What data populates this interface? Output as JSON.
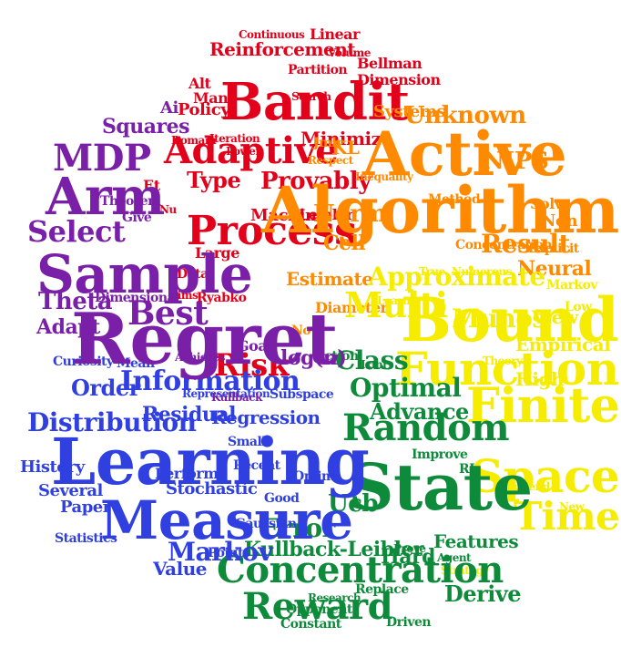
{
  "palette": {
    "red": "#e2001a",
    "orange": "#ff8a00",
    "yellow": "#f5ec00",
    "green": "#0d8a3a",
    "blue": "#2f3fe0",
    "purple": "#7a1fa8"
  },
  "words": [
    {
      "text": "Bandit",
      "color": "red",
      "size": "xl"
    },
    {
      "text": "Adaptive",
      "color": "red",
      "size": "lg"
    },
    {
      "text": "Reinforcement",
      "color": "red",
      "size": "md"
    },
    {
      "text": "Risk",
      "color": "red",
      "size": "md"
    },
    {
      "text": "Process",
      "color": "red",
      "size": "lg"
    },
    {
      "text": "Type",
      "color": "red",
      "size": "md"
    },
    {
      "text": "Provably",
      "color": "red",
      "size": "md"
    },
    {
      "text": "Minimize",
      "color": "red",
      "size": "sm"
    },
    {
      "text": "Policy",
      "color": "red",
      "size": "sm"
    },
    {
      "text": "Alt",
      "color": "red",
      "size": "sm"
    },
    {
      "text": "Many",
      "color": "red",
      "size": "sm"
    },
    {
      "text": "Dimension",
      "color": "red",
      "size": "sm"
    },
    {
      "text": "Bellman",
      "color": "red",
      "size": "sm"
    },
    {
      "text": "Partition",
      "color": "red",
      "size": "sm"
    },
    {
      "text": "Linear",
      "color": "red",
      "size": "sm"
    },
    {
      "text": "Continuous",
      "color": "red",
      "size": "xs"
    },
    {
      "text": "Volume",
      "color": "red",
      "size": "xs"
    },
    {
      "text": "Machine",
      "color": "red",
      "size": "sm"
    },
    {
      "text": "Leibler",
      "color": "red",
      "size": "sm"
    },
    {
      "text": "Large",
      "color": "red",
      "size": "sm"
    },
    {
      "text": "Data",
      "color": "red",
      "size": "xs"
    },
    {
      "text": "Iteration",
      "color": "red",
      "size": "xs"
    },
    {
      "text": "Search",
      "color": "red",
      "size": "xs"
    },
    {
      "text": "Ryabko",
      "color": "red",
      "size": "xs"
    },
    {
      "text": "Aims",
      "color": "red",
      "size": "xs"
    },
    {
      "text": "Et",
      "color": "red",
      "size": "sm"
    },
    {
      "text": "Nu",
      "color": "red",
      "size": "xs"
    },
    {
      "text": "Lower",
      "color": "red",
      "size": "xs"
    },
    {
      "text": "Domain",
      "color": "red",
      "size": "xs"
    },
    {
      "text": "Active",
      "color": "orange",
      "size": "xl"
    },
    {
      "text": "Algorithm",
      "color": "orange",
      "size": "xl"
    },
    {
      "text": "NIPS",
      "color": "orange",
      "size": "md"
    },
    {
      "text": "Unknown",
      "color": "orange",
      "size": "md"
    },
    {
      "text": "Result",
      "color": "orange",
      "size": "md"
    },
    {
      "text": "Norm",
      "color": "orange",
      "size": "md"
    },
    {
      "text": "Cell",
      "color": "orange",
      "size": "md"
    },
    {
      "text": "Estimate",
      "color": "orange",
      "size": "sm"
    },
    {
      "text": "KL",
      "color": "orange",
      "size": "md"
    },
    {
      "text": "Neural",
      "color": "orange",
      "size": "sm"
    },
    {
      "text": "Systems",
      "color": "orange",
      "size": "sm"
    },
    {
      "text": "Concentration",
      "color": "orange",
      "size": "xs"
    },
    {
      "text": "Inequality",
      "color": "orange",
      "size": "xs"
    },
    {
      "text": "Method",
      "color": "orange",
      "size": "xs"
    },
    {
      "text": "Solve",
      "color": "orange",
      "size": "xs"
    },
    {
      "text": "Non",
      "color": "orange",
      "size": "sm"
    },
    {
      "text": "Jmlr",
      "color": "orange",
      "size": "xs"
    },
    {
      "text": "Respect",
      "color": "orange",
      "size": "xs"
    },
    {
      "text": "Explicit",
      "color": "orange",
      "size": "xs"
    },
    {
      "text": "Diameter",
      "color": "orange",
      "size": "xs"
    },
    {
      "text": "Now",
      "color": "orange",
      "size": "xs"
    },
    {
      "text": "Bound",
      "color": "yellow",
      "size": "xl"
    },
    {
      "text": "Function",
      "color": "yellow",
      "size": "lg"
    },
    {
      "text": "Finite",
      "color": "yellow",
      "size": "lg"
    },
    {
      "text": "Space",
      "color": "yellow",
      "size": "lg"
    },
    {
      "text": "Time",
      "color": "yellow",
      "size": "lg"
    },
    {
      "text": "Multi",
      "color": "yellow",
      "size": "md"
    },
    {
      "text": "Approximate",
      "color": "yellow",
      "size": "md"
    },
    {
      "text": "Munos",
      "color": "yellow",
      "size": "md"
    },
    {
      "text": "View",
      "color": "yellow",
      "size": "sm"
    },
    {
      "text": "Empirical",
      "color": "yellow",
      "size": "sm"
    },
    {
      "text": "High",
      "color": "yellow",
      "size": "sm"
    },
    {
      "text": "Markov",
      "color": "yellow",
      "size": "xs"
    },
    {
      "text": "Low",
      "color": "yellow",
      "size": "xs"
    },
    {
      "text": "Theory",
      "color": "yellow",
      "size": "xs"
    },
    {
      "text": "Extend",
      "color": "yellow",
      "size": "xs"
    },
    {
      "text": "New",
      "color": "yellow",
      "size": "xs"
    },
    {
      "text": "Strategy",
      "color": "yellow",
      "size": "xs"
    },
    {
      "text": "True",
      "color": "yellow",
      "size": "xs"
    },
    {
      "text": "Numerous",
      "color": "yellow",
      "size": "xs"
    },
    {
      "text": "Learner",
      "color": "yellow",
      "size": "xs"
    },
    {
      "text": "State",
      "color": "green",
      "size": "xl"
    },
    {
      "text": "Concentration",
      "color": "green",
      "size": "lg"
    },
    {
      "text": "Reward",
      "color": "green",
      "size": "lg"
    },
    {
      "text": "Random",
      "color": "green",
      "size": "lg"
    },
    {
      "text": "Class",
      "color": "green",
      "size": "md"
    },
    {
      "text": "Optimal",
      "color": "green",
      "size": "md"
    },
    {
      "text": "Advance",
      "color": "green",
      "size": "md"
    },
    {
      "text": "Error",
      "color": "green",
      "size": "md"
    },
    {
      "text": "Ucb",
      "color": "green",
      "size": "md"
    },
    {
      "text": "Kullback-Leibler",
      "color": "green",
      "size": "md"
    },
    {
      "text": "Derive",
      "color": "green",
      "size": "md"
    },
    {
      "text": "Features",
      "color": "green",
      "size": "sm"
    },
    {
      "text": "Prove",
      "color": "green",
      "size": "xs"
    },
    {
      "text": "Hard",
      "color": "green",
      "size": "sm"
    },
    {
      "text": "Improve",
      "color": "green",
      "size": "xs"
    },
    {
      "text": "Opponent",
      "color": "green",
      "size": "xs"
    },
    {
      "text": "Replace",
      "color": "green",
      "size": "xs"
    },
    {
      "text": "Driven",
      "color": "green",
      "size": "xs"
    },
    {
      "text": "Research",
      "color": "green",
      "size": "xs"
    },
    {
      "text": "Constant",
      "color": "green",
      "size": "xs"
    },
    {
      "text": "Action",
      "color": "green",
      "size": "xs"
    },
    {
      "text": "Icml",
      "color": "green",
      "size": "xs"
    },
    {
      "text": "RL",
      "color": "green",
      "size": "xs"
    },
    {
      "text": "Agent",
      "color": "green",
      "size": "xs"
    },
    {
      "text": "Learning",
      "color": "blue",
      "size": "xl"
    },
    {
      "text": "Measure",
      "color": "blue",
      "size": "xl"
    },
    {
      "text": "Distribution",
      "color": "blue",
      "size": "md"
    },
    {
      "text": "Information",
      "color": "blue",
      "size": "md"
    },
    {
      "text": "Order",
      "color": "blue",
      "size": "md"
    },
    {
      "text": "Markov",
      "color": "blue",
      "size": "md"
    },
    {
      "text": "Residual",
      "color": "blue",
      "size": "sm"
    },
    {
      "text": "Regression",
      "color": "blue",
      "size": "sm"
    },
    {
      "text": "Stochastic",
      "color": "blue",
      "size": "sm"
    },
    {
      "text": "Performs",
      "color": "blue",
      "size": "sm"
    },
    {
      "text": "History",
      "color": "blue",
      "size": "sm"
    },
    {
      "text": "Several",
      "color": "blue",
      "size": "sm"
    },
    {
      "text": "Paper",
      "color": "blue",
      "size": "sm"
    },
    {
      "text": "Statistics",
      "color": "blue",
      "size": "xs"
    },
    {
      "text": "Value",
      "color": "blue",
      "size": "sm"
    },
    {
      "text": "Online",
      "color": "blue",
      "size": "xs"
    },
    {
      "text": "Good",
      "color": "blue",
      "size": "xs"
    },
    {
      "text": "Gaussian",
      "color": "blue",
      "size": "xs"
    },
    {
      "text": "Subspace",
      "color": "blue",
      "size": "xs"
    },
    {
      "text": "Representation",
      "color": "blue",
      "size": "xs"
    },
    {
      "text": "Small",
      "color": "blue",
      "size": "xs"
    },
    {
      "text": "Recent",
      "color": "blue",
      "size": "xs"
    },
    {
      "text": "Points",
      "color": "blue",
      "size": "xs"
    },
    {
      "text": "Curiosity",
      "color": "blue",
      "size": "xs"
    },
    {
      "text": "Mean",
      "color": "blue",
      "size": "xs"
    },
    {
      "text": "Regret",
      "color": "purple",
      "size": "xl"
    },
    {
      "text": "Sample",
      "color": "purple",
      "size": "xl"
    },
    {
      "text": "Arm",
      "color": "purple",
      "size": "lg"
    },
    {
      "text": "MDP",
      "color": "purple",
      "size": "lg"
    },
    {
      "text": "Select",
      "color": "purple",
      "size": "md"
    },
    {
      "text": "Best",
      "color": "purple",
      "size": "md"
    },
    {
      "text": "Theta",
      "color": "purple",
      "size": "sm"
    },
    {
      "text": "Adapt",
      "color": "purple",
      "size": "sm"
    },
    {
      "text": "Squares",
      "color": "purple",
      "size": "sm"
    },
    {
      "text": "log(n)",
      "color": "purple",
      "size": "sm"
    },
    {
      "text": "Goal",
      "color": "purple",
      "size": "sm"
    },
    {
      "text": "Achieves",
      "color": "purple",
      "size": "xs"
    },
    {
      "text": "Dimensional",
      "color": "purple",
      "size": "xs"
    },
    {
      "text": "Theorem",
      "color": "purple",
      "size": "xs"
    },
    {
      "text": "Give",
      "color": "purple",
      "size": "xs"
    },
    {
      "text": "Ai",
      "color": "purple",
      "size": "sm"
    },
    {
      "text": "Kullback",
      "color": "purple",
      "size": "xs"
    }
  ]
}
